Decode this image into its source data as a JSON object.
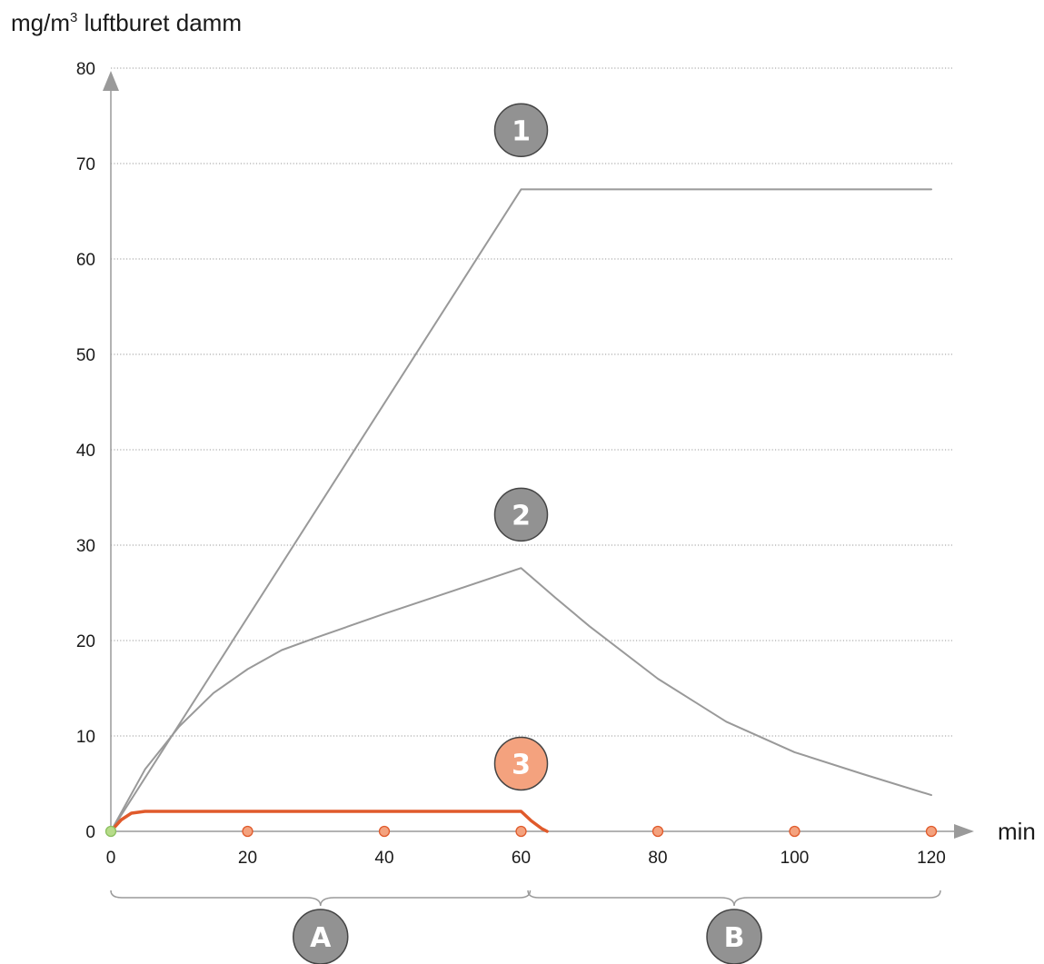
{
  "chart_data": {
    "type": "line",
    "ylabel_main": "mg/m",
    "ylabel_sup": "3",
    "ylabel_rest": " luftburet damm",
    "xlabel": "min",
    "xlim": [
      0,
      120
    ],
    "ylim": [
      0,
      80
    ],
    "x_ticks": [
      0,
      20,
      40,
      60,
      80,
      100,
      120
    ],
    "y_ticks": [
      0,
      10,
      20,
      30,
      40,
      50,
      60,
      70,
      80
    ],
    "grid": true,
    "series": [
      {
        "name": "1",
        "color": "#999999",
        "points": [
          [
            0,
            0
          ],
          [
            60,
            67.3
          ],
          [
            120,
            67.3
          ]
        ]
      },
      {
        "name": "2",
        "color": "#999999",
        "points": [
          [
            0,
            0
          ],
          [
            5,
            6.5
          ],
          [
            10,
            11
          ],
          [
            15,
            14.5
          ],
          [
            20,
            17
          ],
          [
            25,
            19
          ],
          [
            30,
            20.3
          ],
          [
            40,
            22.8
          ],
          [
            50,
            25.2
          ],
          [
            60,
            27.6
          ],
          [
            65,
            24.5
          ],
          [
            70,
            21.5
          ],
          [
            80,
            16
          ],
          [
            90,
            11.5
          ],
          [
            100,
            8.3
          ],
          [
            110,
            6
          ],
          [
            120,
            3.8
          ]
        ]
      },
      {
        "name": "3",
        "color": "#e05a2b",
        "points": [
          [
            0,
            0
          ],
          [
            1.5,
            1.2
          ],
          [
            3,
            1.9
          ],
          [
            5,
            2.1
          ],
          [
            60,
            2.1
          ],
          [
            61.5,
            1.1
          ],
          [
            63,
            0.3
          ],
          [
            63.8,
            0
          ]
        ]
      }
    ],
    "series_badges": [
      {
        "label": "1",
        "x": 60,
        "y": 73.5,
        "color": "#929292"
      },
      {
        "label": "2",
        "x": 60,
        "y": 33.2,
        "color": "#929292"
      },
      {
        "label": "3",
        "x": 60,
        "y": 7.1,
        "color": "#f4a27e"
      }
    ],
    "x_markers": [
      20,
      40,
      60,
      80,
      100,
      120
    ],
    "origin_marker": 0,
    "marker_color": "#f4a27e",
    "origin_color": "#b7dc8a",
    "ranges": [
      {
        "label": "A",
        "from": 0,
        "to": 60
      },
      {
        "label": "B",
        "from": 61,
        "to": 120
      }
    ]
  }
}
